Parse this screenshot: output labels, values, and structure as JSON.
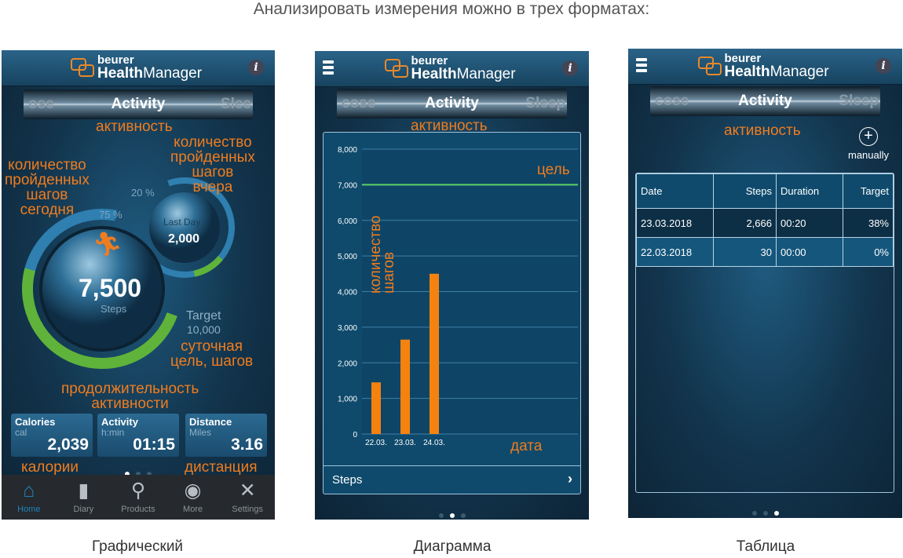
{
  "title": "Анализировать измерения можно в трех форматах:",
  "captions": [
    "Графический",
    "Диаграмма",
    "Таблица"
  ],
  "app": {
    "brand": "beurer",
    "name_bold": "Health",
    "name_rest": "Manager",
    "info": "i"
  },
  "colors": {
    "accent": "#f07c1e",
    "goal": "#5fd16a",
    "bar": "#f5820f",
    "ring_green": "#5fb33a",
    "ring_blue": "#2f7fb0"
  },
  "screen1": {
    "tabs": [
      "ose",
      "Activity",
      "Slee"
    ],
    "today_pct": "75 %",
    "lastday_pct": "20 %",
    "lastday_label": "Last Day",
    "lastday_value": "2,000",
    "steps_value": "7,500",
    "steps_label": "Steps",
    "today_progress": 0.75,
    "lastday_progress": 0.2,
    "target_label": "Target",
    "target_value": "10,000",
    "cards": [
      {
        "title": "Calories",
        "unit": "cal",
        "value": "2,039"
      },
      {
        "title": "Activity",
        "unit": "h:min",
        "value": "01:15"
      },
      {
        "title": "Distance",
        "unit": "Miles",
        "value": "3.16"
      }
    ],
    "page": 1,
    "nav": [
      {
        "label": "Home",
        "icon": "home-icon"
      },
      {
        "label": "Diary",
        "icon": "book-icon"
      },
      {
        "label": "Products",
        "icon": "search-icon"
      },
      {
        "label": "More",
        "icon": "more-icon"
      },
      {
        "label": "Settings",
        "icon": "settings-icon"
      }
    ],
    "annotations": {
      "activity": "активность",
      "today": "количество\nпройденных\nшагов\nсегодня",
      "yesterday": "количество\nпройденных\nшагов\nвчера",
      "goal": "суточная\nцель, шагов",
      "duration": "продолжительность\nактивности",
      "calories": "калории",
      "distance": "дистанция"
    }
  },
  "screen2": {
    "tabs": [
      "cose",
      "Activity",
      "Sleep"
    ],
    "footer_label": "Steps",
    "page": 2,
    "annotations": {
      "activity": "активность",
      "goal": "цель",
      "steps": "количество\nшагов",
      "date": "дата"
    }
  },
  "chart_data": {
    "type": "bar",
    "categories": [
      "22.03.",
      "23.03.",
      "24.03."
    ],
    "values": [
      1450,
      2650,
      4500
    ],
    "goal_line": 7000,
    "ylim": [
      0,
      8000
    ],
    "yticks": [
      "0",
      "1,000",
      "2,000",
      "3,000",
      "4,000",
      "5,000",
      "6,000",
      "7,000",
      "8,000"
    ],
    "grid": true
  },
  "screen3": {
    "tabs": [
      "cose",
      "Activity",
      "Sleep"
    ],
    "manually": "manually",
    "page": 3,
    "annotation": "активность",
    "table": {
      "headers": [
        "Date",
        "Steps",
        "Duration",
        "Target"
      ],
      "rows": [
        [
          "23.03.2018",
          "2,666",
          "00:20",
          "38%"
        ],
        [
          "22.03.2018",
          "30",
          "00:00",
          "0%"
        ]
      ]
    }
  }
}
